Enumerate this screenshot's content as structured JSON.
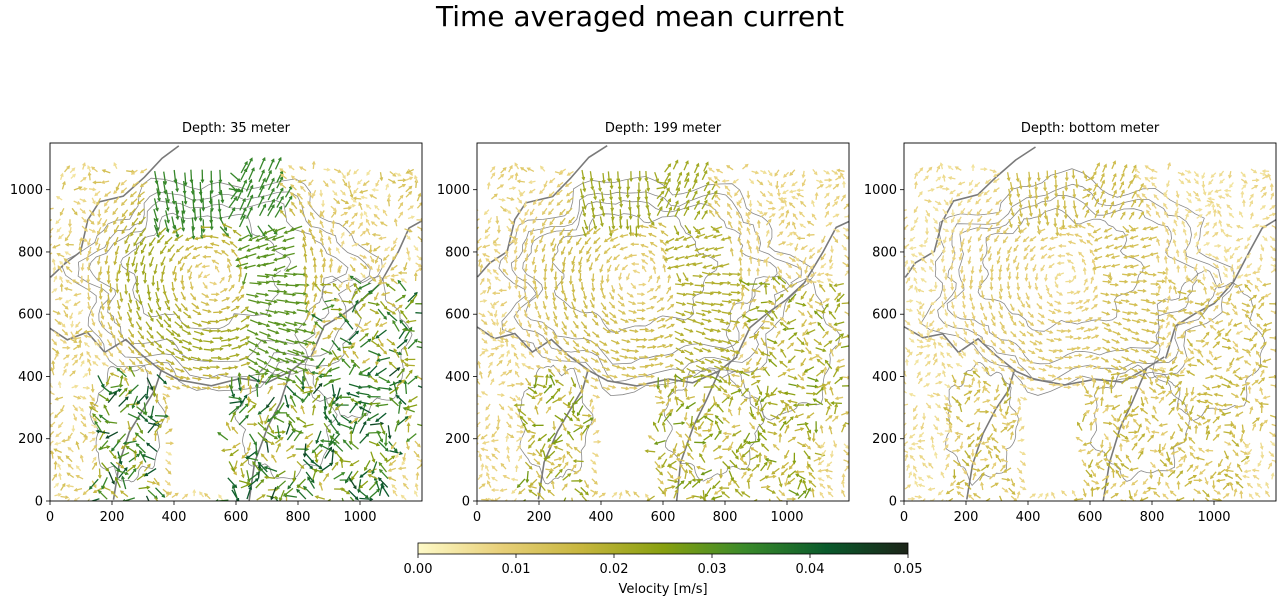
{
  "title": "Time averaged mean current",
  "chart_data": [
    {
      "type": "quiver",
      "title": "Depth: 35 meter",
      "xlim": [
        0,
        1200
      ],
      "ylim": [
        0,
        1150
      ],
      "xticks": [
        0,
        200,
        400,
        600,
        800,
        1000
      ],
      "yticks": [
        0,
        200,
        400,
        600,
        800,
        1000
      ],
      "xlabel": "",
      "ylabel": ""
    },
    {
      "type": "quiver",
      "title": "Depth: 199 meter",
      "xlim": [
        0,
        1200
      ],
      "ylim": [
        0,
        1150
      ],
      "xticks": [
        0,
        200,
        400,
        600,
        800,
        1000
      ],
      "yticks": [
        0,
        200,
        400,
        600,
        800,
        1000
      ],
      "xlabel": "",
      "ylabel": ""
    },
    {
      "type": "quiver",
      "title": "Depth: bottom meter",
      "xlim": [
        0,
        1200
      ],
      "ylim": [
        0,
        1150
      ],
      "xticks": [
        0,
        200,
        400,
        600,
        800,
        1000
      ],
      "yticks": [
        0,
        200,
        400,
        600,
        800,
        1000
      ],
      "xlabel": "",
      "ylabel": ""
    }
  ],
  "colorbar": {
    "label": "Velocity [m/s]",
    "min": 0.0,
    "max": 0.05,
    "ticks": [
      "0.00",
      "0.01",
      "0.02",
      "0.03",
      "0.04",
      "0.05"
    ],
    "colors": [
      "#fefac8",
      "#e8d07a",
      "#c7b63e",
      "#88a010",
      "#3a8a2a",
      "#0a5a2c",
      "#1c2418"
    ]
  },
  "map_style": {
    "contour_color": "#888888",
    "land_color": "#ffffff"
  }
}
